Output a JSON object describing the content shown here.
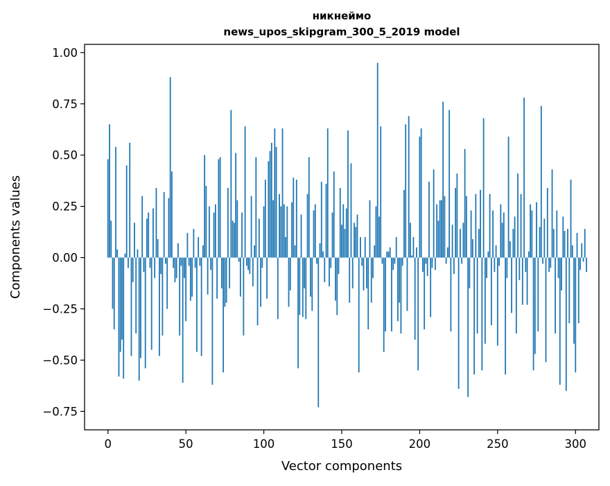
{
  "chart_data": {
    "type": "bar",
    "title": [
      "никнеймо",
      "news_upos_skipgram_300_5_2019 model"
    ],
    "xlabel": "Vector components",
    "ylabel": "Components values",
    "xlim": [
      -15,
      315
    ],
    "ylim": [
      -0.84,
      1.04
    ],
    "xticks": [
      0,
      50,
      100,
      150,
      200,
      250,
      300
    ],
    "yticks": [
      -0.75,
      -0.5,
      -0.25,
      0.0,
      0.25,
      0.5,
      0.75,
      1.0
    ],
    "xtick_labels": [
      "0",
      "50",
      "100",
      "150",
      "200",
      "250",
      "300"
    ],
    "ytick_labels": [
      "−0.75",
      "−0.50",
      "−0.25",
      "0.00",
      "0.25",
      "0.50",
      "0.75",
      "1.00"
    ],
    "grid": false,
    "bar_color": "#1f77b4",
    "series": [
      {
        "values": [
          0.48,
          0.65,
          0.18,
          -0.25,
          -0.35,
          0.54,
          0.04,
          -0.58,
          -0.46,
          -0.4,
          -0.59,
          0.02,
          0.45,
          -0.05,
          0.56,
          -0.48,
          -0.12,
          0.17,
          -0.37,
          0.04,
          -0.6,
          -0.49,
          0.3,
          -0.07,
          -0.54,
          0.19,
          0.22,
          -0.05,
          -0.45,
          0.24,
          -0.1,
          0.34,
          0.09,
          -0.48,
          -0.08,
          -0.38,
          0.32,
          -0.03,
          -0.25,
          0.29,
          0.88,
          0.42,
          -0.05,
          -0.12,
          -0.1,
          0.07,
          -0.38,
          -0.04,
          -0.61,
          -0.1,
          -0.31,
          0.12,
          -0.04,
          -0.21,
          -0.19,
          0.14,
          -0.05,
          -0.46,
          0.1,
          -0.04,
          -0.48,
          0.06,
          0.5,
          0.35,
          -0.18,
          0.25,
          -0.06,
          -0.62,
          0.22,
          0.26,
          -0.2,
          0.48,
          0.49,
          -0.15,
          -0.56,
          -0.24,
          -0.22,
          0.34,
          -0.15,
          0.72,
          0.18,
          0.17,
          0.51,
          0.28,
          -0.02,
          -0.19,
          0.22,
          -0.38,
          0.64,
          -0.04,
          -0.06,
          -0.08,
          0.3,
          -0.14,
          0.06,
          0.49,
          -0.33,
          0.19,
          -0.24,
          -0.05,
          0.25,
          0.38,
          -0.2,
          0.47,
          0.52,
          0.56,
          0.28,
          0.63,
          0.54,
          -0.3,
          0.31,
          0.25,
          0.63,
          0.26,
          0.1,
          0.25,
          -0.24,
          -0.16,
          0.27,
          0.39,
          0.06,
          0.38,
          -0.54,
          -0.28,
          0.21,
          -0.29,
          -0.15,
          -0.3,
          0.31,
          0.49,
          -0.19,
          -0.26,
          0.23,
          0.26,
          -0.03,
          -0.73,
          0.07,
          0.37,
          0.03,
          -0.12,
          0.36,
          0.63,
          -0.14,
          -0.05,
          0.22,
          0.42,
          -0.21,
          -0.28,
          -0.08,
          0.34,
          0.16,
          0.26,
          0.14,
          0.24,
          0.62,
          -0.22,
          0.46,
          -0.15,
          0.17,
          0.15,
          0.21,
          -0.56,
          0.1,
          -0.04,
          -0.16,
          0.1,
          -0.15,
          -0.35,
          0.28,
          -0.22,
          -0.1,
          0.06,
          0.25,
          0.95,
          0.2,
          0.64,
          -0.03,
          -0.46,
          -0.36,
          0.03,
          0.03,
          0.05,
          -0.36,
          -0.06,
          -0.03,
          0.1,
          -0.31,
          -0.22,
          -0.37,
          -0.04,
          0.33,
          0.65,
          -0.26,
          0.69,
          0.17,
          0.01,
          0.1,
          -0.4,
          0.05,
          -0.55,
          0.59,
          0.63,
          -0.07,
          -0.35,
          -0.03,
          -0.09,
          0.37,
          -0.29,
          -0.05,
          0.43,
          -0.06,
          0.26,
          0.18,
          0.28,
          0.28,
          0.76,
          0.3,
          -0.03,
          0.05,
          0.72,
          -0.36,
          0.16,
          -0.08,
          0.34,
          0.41,
          -0.64,
          0.14,
          -0.03,
          0.17,
          0.53,
          0.3,
          -0.68,
          -0.15,
          0.23,
          0.09,
          -0.57,
          0.31,
          -0.37,
          0.14,
          0.33,
          -0.55,
          0.68,
          -0.42,
          -0.1,
          0.03,
          0.31,
          -0.33,
          0.23,
          -0.07,
          0.06,
          -0.43,
          -0.04,
          0.26,
          0.17,
          0.22,
          -0.57,
          -0.1,
          0.59,
          0.08,
          -0.27,
          0.14,
          0.2,
          -0.37,
          0.41,
          -0.11,
          0.31,
          -0.23,
          0.78,
          -0.07,
          -0.23,
          0.03,
          0.26,
          0.23,
          -0.55,
          -0.47,
          0.27,
          -0.36,
          0.15,
          0.74,
          -0.03,
          0.19,
          -0.51,
          0.34,
          -0.07,
          -0.05,
          0.43,
          0.14,
          -0.37,
          0.23,
          -0.1,
          -0.62,
          -0.16,
          0.2,
          0.13,
          -0.65,
          0.14,
          -0.32,
          0.38,
          0.06,
          -0.42,
          -0.56,
          0.12,
          -0.32,
          -0.06,
          0.07,
          -0.02,
          0.14,
          -0.07
        ]
      }
    ]
  }
}
